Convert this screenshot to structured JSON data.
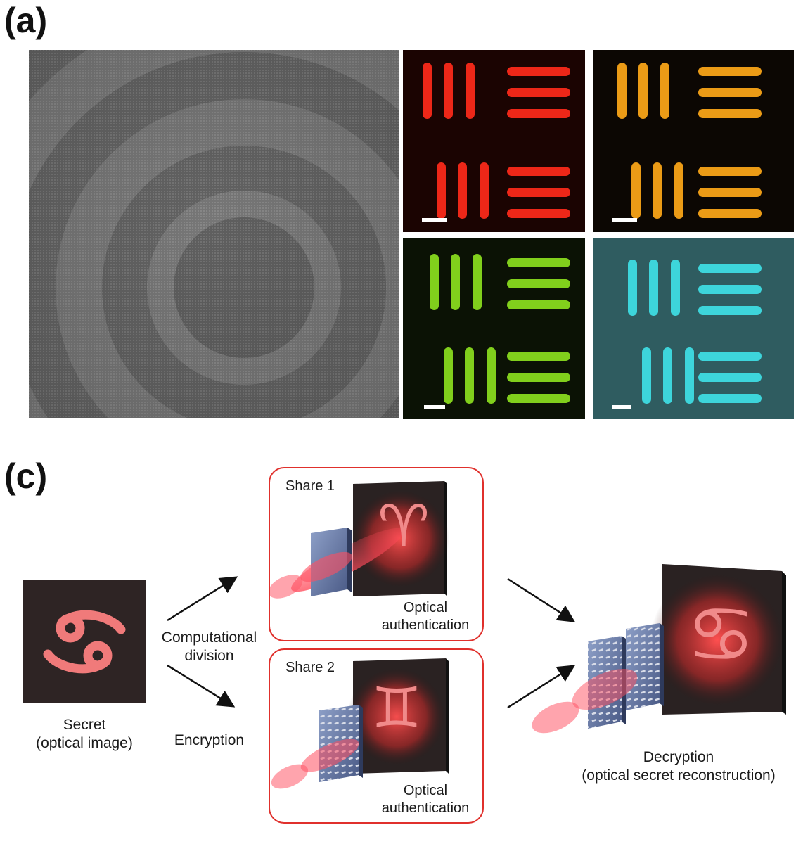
{
  "panel_a": {
    "label": "(a)",
    "tiles": [
      {
        "name": "red",
        "color": "#ff2a1a",
        "bg": "#1b0402"
      },
      {
        "name": "orange",
        "color": "#ffa818",
        "bg": "#0c0703"
      },
      {
        "name": "green",
        "color": "#8ce01e",
        "bg": "#0b1205"
      },
      {
        "name": "cyan",
        "color": "#3fe0e6",
        "bg": "#2f5c60"
      }
    ]
  },
  "panel_c": {
    "label": "(c)",
    "secret_caption_line1": "Secret",
    "secret_caption_line2": "(optical image)",
    "computational_line1": "Computational",
    "computational_line2": "division",
    "encryption": "Encryption",
    "share1_title": "Share 1",
    "share2_title": "Share 2",
    "auth1_line1": "Optical",
    "auth1_line2": "authentication",
    "auth2_line1": "Optical",
    "auth2_line2": "authentication",
    "decryption_line1": "Decryption",
    "decryption_line2": "(optical secret reconstruction)",
    "symbols": {
      "secret": "♋",
      "share1": "♈",
      "share2": "♊",
      "result": "♋"
    },
    "accent_color": "#e0302c",
    "glow_color": "#ff5a5a"
  }
}
